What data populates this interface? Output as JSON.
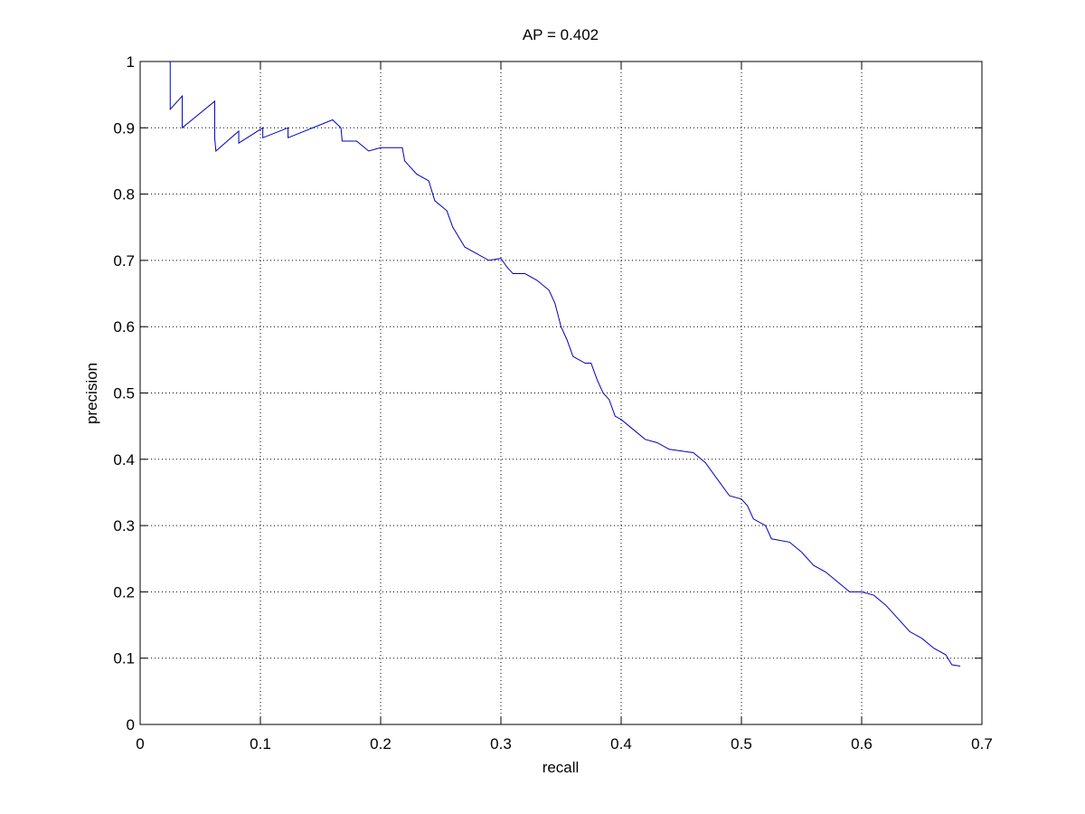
{
  "chart_data": {
    "type": "line",
    "title": "AP = 0.402",
    "xlabel": "recall",
    "ylabel": "precision",
    "x": [
      0.025,
      0.025,
      0.035,
      0.035,
      0.062,
      0.062,
      0.063,
      0.082,
      0.082,
      0.102,
      0.102,
      0.123,
      0.123,
      0.16,
      0.167,
      0.168,
      0.18,
      0.19,
      0.2,
      0.218,
      0.22,
      0.23,
      0.24,
      0.245,
      0.255,
      0.26,
      0.265,
      0.27,
      0.28,
      0.29,
      0.3,
      0.305,
      0.31,
      0.32,
      0.33,
      0.34,
      0.345,
      0.35,
      0.355,
      0.36,
      0.37,
      0.375,
      0.38,
      0.385,
      0.39,
      0.395,
      0.4,
      0.41,
      0.42,
      0.43,
      0.44,
      0.46,
      0.47,
      0.48,
      0.49,
      0.5,
      0.505,
      0.51,
      0.52,
      0.525,
      0.54,
      0.55,
      0.56,
      0.57,
      0.58,
      0.59,
      0.6,
      0.61,
      0.62,
      0.63,
      0.64,
      0.65,
      0.66,
      0.67,
      0.675,
      0.682
    ],
    "values": [
      1.0,
      0.928,
      0.948,
      0.9,
      0.94,
      0.885,
      0.865,
      0.895,
      0.877,
      0.9,
      0.885,
      0.9,
      0.885,
      0.912,
      0.9,
      0.88,
      0.88,
      0.865,
      0.87,
      0.87,
      0.85,
      0.83,
      0.82,
      0.79,
      0.775,
      0.75,
      0.735,
      0.72,
      0.71,
      0.7,
      0.703,
      0.69,
      0.68,
      0.68,
      0.67,
      0.655,
      0.635,
      0.6,
      0.58,
      0.555,
      0.545,
      0.545,
      0.52,
      0.5,
      0.49,
      0.465,
      0.46,
      0.445,
      0.43,
      0.425,
      0.415,
      0.41,
      0.395,
      0.37,
      0.345,
      0.34,
      0.33,
      0.31,
      0.3,
      0.28,
      0.275,
      0.26,
      0.24,
      0.23,
      0.215,
      0.2,
      0.2,
      0.195,
      0.18,
      0.16,
      0.14,
      0.13,
      0.115,
      0.105,
      0.09,
      0.088
    ],
    "color": "#0000bb",
    "xlim": [
      0,
      0.7
    ],
    "xticks": [
      0,
      0.1,
      0.2,
      0.3,
      0.4,
      0.5,
      0.6,
      0.7
    ],
    "ylim": [
      0,
      1
    ],
    "yticks": [
      0,
      0.1,
      0.2,
      0.3,
      0.4,
      0.5,
      0.6,
      0.7,
      0.8,
      0.9,
      1
    ],
    "grid": true
  }
}
